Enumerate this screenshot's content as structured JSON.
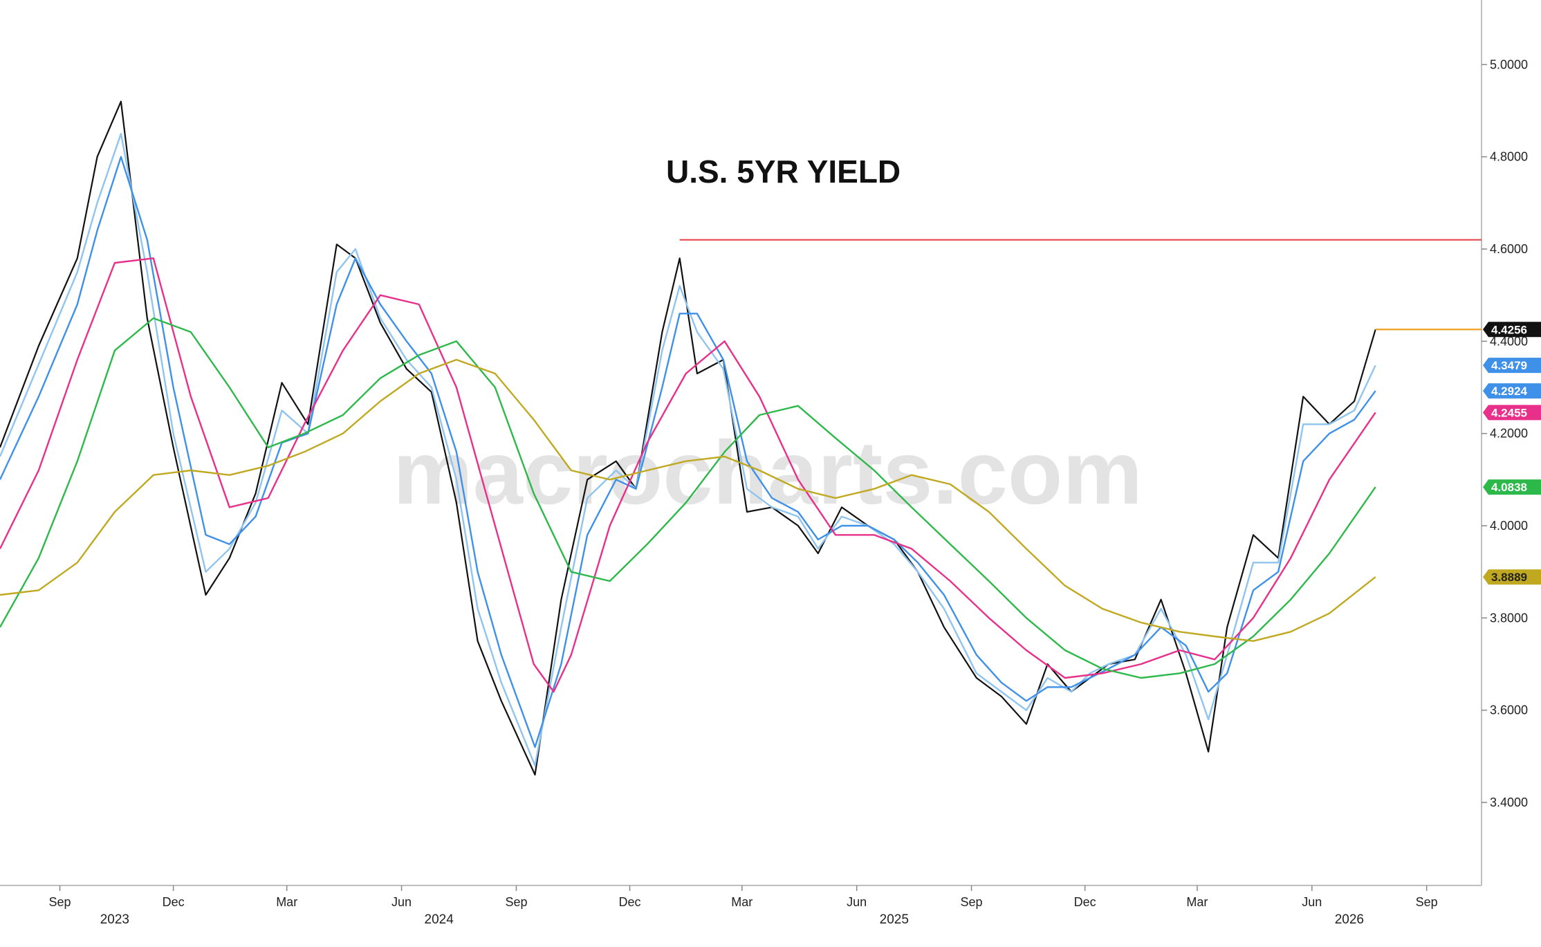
{
  "chart_data": {
    "type": "line",
    "title": "U.S. 5YR YIELD",
    "watermark": "macrocharts.com",
    "xlabel": "",
    "ylabel": "",
    "ylim": [
      3.22,
      5.14
    ],
    "y_ticks": [
      "3.4000",
      "3.6000",
      "3.8000",
      "4.0000",
      "4.2000",
      "4.4000",
      "4.6000",
      "4.8000",
      "5.0000"
    ],
    "y_tick_values": [
      3.4,
      3.6,
      3.8,
      4.0,
      4.2,
      4.4,
      4.6,
      4.8,
      5.0
    ],
    "x_range": [
      "2023-07-15",
      "2026-10-15"
    ],
    "x_ticks": [
      {
        "date": "2023-09-01",
        "label": "Sep"
      },
      {
        "date": "2023-12-01",
        "label": "Dec"
      },
      {
        "date": "2024-03-01",
        "label": "Mar"
      },
      {
        "date": "2024-06-01",
        "label": "Jun"
      },
      {
        "date": "2024-09-01",
        "label": "Sep"
      },
      {
        "date": "2024-12-01",
        "label": "Dec"
      },
      {
        "date": "2025-03-01",
        "label": "Mar"
      },
      {
        "date": "2025-06-01",
        "label": "Jun"
      },
      {
        "date": "2025-09-01",
        "label": "Sep"
      },
      {
        "date": "2025-12-01",
        "label": "Dec"
      },
      {
        "date": "2026-03-01",
        "label": "Mar"
      },
      {
        "date": "2026-06-01",
        "label": "Jun"
      },
      {
        "date": "2026-09-01",
        "label": "Sep"
      }
    ],
    "year_labels": [
      {
        "date": "2023-10-15",
        "label": "2023"
      },
      {
        "date": "2024-07-01",
        "label": "2024"
      },
      {
        "date": "2025-07-01",
        "label": "2025"
      },
      {
        "date": "2026-07-01",
        "label": "2026"
      }
    ],
    "grid": false,
    "horizontal_lines": [
      {
        "from": "2025-01-10",
        "value": 4.62,
        "color": "#e8454a"
      },
      {
        "from": "2026-07-22",
        "value": 4.4256,
        "color": "#f0a020"
      }
    ],
    "badges": [
      {
        "label": "4.4256",
        "value": 4.4256,
        "color": "#111111",
        "text_color": "#ffffff"
      },
      {
        "label": "4.3479",
        "value": 4.3479,
        "color": "#3e90e8",
        "text_color": "#ffffff"
      },
      {
        "label": "4.2924",
        "value": 4.2924,
        "color": "#3e90e8",
        "text_color": "#ffffff"
      },
      {
        "label": "4.2455",
        "value": 4.2455,
        "color": "#e8308a",
        "text_color": "#ffffff"
      },
      {
        "label": "4.0838",
        "value": 4.0838,
        "color": "#2db84a",
        "text_color": "#ffffff"
      },
      {
        "label": "3.8889",
        "value": 3.8889,
        "color": "#c0a820",
        "text_color": "#222222"
      }
    ],
    "price_series": {
      "color": "#111111",
      "dates": [
        "2023-07-15",
        "2023-08-15",
        "2023-09-15",
        "2023-10-01",
        "2023-10-20",
        "2023-11-10",
        "2023-12-01",
        "2023-12-27",
        "2024-01-15",
        "2024-02-05",
        "2024-02-26",
        "2024-03-18",
        "2024-04-10",
        "2024-04-25",
        "2024-05-15",
        "2024-06-05",
        "2024-06-25",
        "2024-07-15",
        "2024-08-01",
        "2024-08-20",
        "2024-09-16",
        "2024-10-07",
        "2024-10-28",
        "2024-11-20",
        "2024-12-06",
        "2024-12-27",
        "2025-01-10",
        "2025-01-24",
        "2025-02-14",
        "2025-03-05",
        "2025-03-25",
        "2025-04-15",
        "2025-05-01",
        "2025-05-20",
        "2025-06-10",
        "2025-07-01",
        "2025-07-20",
        "2025-08-10",
        "2025-09-05",
        "2025-09-25",
        "2025-10-15",
        "2025-11-01",
        "2025-11-20",
        "2025-12-05",
        "2025-12-20",
        "2026-01-10",
        "2026-01-31",
        "2026-02-20",
        "2026-03-10",
        "2026-03-25",
        "2026-04-15",
        "2026-05-05",
        "2026-05-25",
        "2026-06-15",
        "2026-07-05",
        "2026-07-22"
      ],
      "values": [
        4.17,
        4.39,
        4.58,
        4.8,
        4.92,
        4.45,
        4.17,
        3.85,
        3.93,
        4.07,
        4.31,
        4.22,
        4.61,
        4.58,
        4.44,
        4.34,
        4.29,
        4.05,
        3.75,
        3.62,
        3.46,
        3.84,
        4.1,
        4.14,
        4.08,
        4.42,
        4.58,
        4.33,
        4.36,
        4.03,
        4.04,
        4.0,
        3.94,
        4.04,
        4.0,
        3.97,
        3.9,
        3.78,
        3.67,
        3.63,
        3.57,
        3.7,
        3.64,
        3.67,
        3.7,
        3.71,
        3.84,
        3.68,
        3.51,
        3.78,
        3.98,
        3.93,
        4.28,
        4.22,
        4.27,
        4.4256
      ]
    },
    "series": [
      {
        "color": "#8fc4f0",
        "dates": [
          "2023-07-15",
          "2023-08-15",
          "2023-09-15",
          "2023-10-01",
          "2023-10-20",
          "2023-11-10",
          "2023-12-01",
          "2023-12-27",
          "2024-01-15",
          "2024-02-05",
          "2024-02-26",
          "2024-03-18",
          "2024-04-10",
          "2024-04-25",
          "2024-05-15",
          "2024-06-05",
          "2024-06-25",
          "2024-07-15",
          "2024-08-01",
          "2024-08-20",
          "2024-09-16",
          "2024-10-07",
          "2024-10-28",
          "2024-11-20",
          "2024-12-06",
          "2024-12-27",
          "2025-01-10",
          "2025-01-24",
          "2025-02-14",
          "2025-03-05",
          "2025-03-25",
          "2025-04-15",
          "2025-05-01",
          "2025-05-20",
          "2025-06-10",
          "2025-07-01",
          "2025-07-20",
          "2025-08-10",
          "2025-09-05",
          "2025-09-25",
          "2025-10-15",
          "2025-11-01",
          "2025-11-20",
          "2025-12-05",
          "2025-12-20",
          "2026-01-10",
          "2026-01-31",
          "2026-02-20",
          "2026-03-10",
          "2026-03-25",
          "2026-04-15",
          "2026-05-05",
          "2026-05-25",
          "2026-06-15",
          "2026-07-05",
          "2026-07-22"
        ],
        "values": [
          4.15,
          4.35,
          4.55,
          4.7,
          4.85,
          4.55,
          4.2,
          3.9,
          3.95,
          4.05,
          4.25,
          4.2,
          4.55,
          4.6,
          4.45,
          4.36,
          4.3,
          4.1,
          3.82,
          3.66,
          3.48,
          3.78,
          4.06,
          4.12,
          4.08,
          4.38,
          4.52,
          4.42,
          4.34,
          4.08,
          4.04,
          4.02,
          3.95,
          4.02,
          4.0,
          3.96,
          3.9,
          3.82,
          3.68,
          3.64,
          3.6,
          3.67,
          3.64,
          3.68,
          3.7,
          3.72,
          3.82,
          3.72,
          3.58,
          3.72,
          3.92,
          3.92,
          4.22,
          4.22,
          4.25,
          4.3479
        ]
      },
      {
        "color": "#3e90e8",
        "dates": [
          "2023-07-15",
          "2023-08-15",
          "2023-09-15",
          "2023-10-01",
          "2023-10-20",
          "2023-11-10",
          "2023-12-01",
          "2023-12-27",
          "2024-01-15",
          "2024-02-05",
          "2024-02-26",
          "2024-03-18",
          "2024-04-10",
          "2024-04-25",
          "2024-05-15",
          "2024-06-05",
          "2024-06-25",
          "2024-07-15",
          "2024-08-01",
          "2024-08-20",
          "2024-09-16",
          "2024-10-07",
          "2024-10-28",
          "2024-11-20",
          "2024-12-06",
          "2024-12-27",
          "2025-01-10",
          "2025-01-24",
          "2025-02-14",
          "2025-03-05",
          "2025-03-25",
          "2025-04-15",
          "2025-05-01",
          "2025-05-20",
          "2025-06-10",
          "2025-07-01",
          "2025-07-20",
          "2025-08-10",
          "2025-09-05",
          "2025-09-25",
          "2025-10-15",
          "2025-11-01",
          "2025-11-20",
          "2025-12-05",
          "2025-12-20",
          "2026-01-10",
          "2026-01-31",
          "2026-02-20",
          "2026-03-10",
          "2026-03-25",
          "2026-04-15",
          "2026-05-05",
          "2026-05-25",
          "2026-06-15",
          "2026-07-05",
          "2026-07-22"
        ],
        "values": [
          4.1,
          4.28,
          4.48,
          4.64,
          4.8,
          4.62,
          4.3,
          3.98,
          3.96,
          4.02,
          4.18,
          4.2,
          4.48,
          4.58,
          4.48,
          4.4,
          4.33,
          4.16,
          3.9,
          3.72,
          3.52,
          3.7,
          3.98,
          4.1,
          4.08,
          4.3,
          4.46,
          4.46,
          4.36,
          4.14,
          4.06,
          4.03,
          3.97,
          4.0,
          4.0,
          3.97,
          3.92,
          3.85,
          3.72,
          3.66,
          3.62,
          3.65,
          3.65,
          3.67,
          3.69,
          3.72,
          3.78,
          3.74,
          3.64,
          3.68,
          3.86,
          3.9,
          4.14,
          4.2,
          4.23,
          4.2924
        ]
      },
      {
        "color": "#e8308a",
        "dates": [
          "2023-07-15",
          "2023-08-15",
          "2023-09-15",
          "2023-10-15",
          "2023-11-15",
          "2023-12-15",
          "2024-01-15",
          "2024-02-15",
          "2024-03-15",
          "2024-04-15",
          "2024-05-15",
          "2024-06-15",
          "2024-07-15",
          "2024-08-15",
          "2024-09-15",
          "2024-10-01",
          "2024-10-15",
          "2024-11-15",
          "2024-12-15",
          "2025-01-15",
          "2025-02-15",
          "2025-03-15",
          "2025-04-15",
          "2025-05-15",
          "2025-06-15",
          "2025-07-15",
          "2025-08-15",
          "2025-09-15",
          "2025-10-15",
          "2025-11-15",
          "2025-12-15",
          "2026-01-15",
          "2026-02-15",
          "2026-03-15",
          "2026-04-15",
          "2026-05-15",
          "2026-06-15",
          "2026-07-22"
        ],
        "values": [
          3.95,
          4.12,
          4.36,
          4.57,
          4.58,
          4.28,
          4.04,
          4.06,
          4.22,
          4.38,
          4.5,
          4.48,
          4.3,
          4.0,
          3.7,
          3.64,
          3.72,
          4.0,
          4.18,
          4.33,
          4.4,
          4.28,
          4.1,
          3.98,
          3.98,
          3.95,
          3.88,
          3.8,
          3.73,
          3.67,
          3.68,
          3.7,
          3.73,
          3.71,
          3.8,
          3.93,
          4.1,
          4.2455
        ]
      },
      {
        "color": "#2db84a",
        "dates": [
          "2023-07-15",
          "2023-08-15",
          "2023-09-15",
          "2023-10-15",
          "2023-11-15",
          "2023-12-15",
          "2024-01-15",
          "2024-02-15",
          "2024-03-15",
          "2024-04-15",
          "2024-05-15",
          "2024-06-15",
          "2024-07-15",
          "2024-08-15",
          "2024-09-15",
          "2024-10-15",
          "2024-11-15",
          "2024-12-15",
          "2025-01-15",
          "2025-02-15",
          "2025-03-15",
          "2025-04-15",
          "2025-05-15",
          "2025-06-15",
          "2025-07-15",
          "2025-08-15",
          "2025-09-15",
          "2025-10-15",
          "2025-11-15",
          "2025-12-15",
          "2026-01-15",
          "2026-02-15",
          "2026-03-15",
          "2026-04-15",
          "2026-05-15",
          "2026-06-15",
          "2026-07-22"
        ],
        "values": [
          3.78,
          3.93,
          4.14,
          4.38,
          4.45,
          4.42,
          4.3,
          4.17,
          4.2,
          4.24,
          4.32,
          4.37,
          4.4,
          4.3,
          4.07,
          3.9,
          3.88,
          3.96,
          4.05,
          4.16,
          4.24,
          4.26,
          4.19,
          4.12,
          4.04,
          3.96,
          3.88,
          3.8,
          3.73,
          3.69,
          3.67,
          3.68,
          3.7,
          3.76,
          3.84,
          3.94,
          4.0838
        ]
      },
      {
        "color": "#c0a820",
        "dates": [
          "2023-07-15",
          "2023-08-15",
          "2023-09-15",
          "2023-10-15",
          "2023-11-15",
          "2023-12-15",
          "2024-01-15",
          "2024-02-15",
          "2024-03-15",
          "2024-04-15",
          "2024-05-15",
          "2024-06-15",
          "2024-07-15",
          "2024-08-15",
          "2024-09-15",
          "2024-10-15",
          "2024-11-15",
          "2024-12-15",
          "2025-01-15",
          "2025-02-15",
          "2025-03-15",
          "2025-04-15",
          "2025-05-15",
          "2025-06-15",
          "2025-07-15",
          "2025-08-15",
          "2025-09-15",
          "2025-10-15",
          "2025-11-15",
          "2025-12-15",
          "2026-01-15",
          "2026-02-15",
          "2026-03-15",
          "2026-04-15",
          "2026-05-15",
          "2026-06-15",
          "2026-07-22"
        ],
        "values": [
          3.85,
          3.86,
          3.92,
          4.03,
          4.11,
          4.12,
          4.11,
          4.13,
          4.16,
          4.2,
          4.27,
          4.33,
          4.36,
          4.33,
          4.23,
          4.12,
          4.1,
          4.12,
          4.14,
          4.15,
          4.12,
          4.08,
          4.06,
          4.08,
          4.11,
          4.09,
          4.03,
          3.95,
          3.87,
          3.82,
          3.79,
          3.77,
          3.76,
          3.75,
          3.77,
          3.81,
          3.8889
        ]
      }
    ]
  }
}
